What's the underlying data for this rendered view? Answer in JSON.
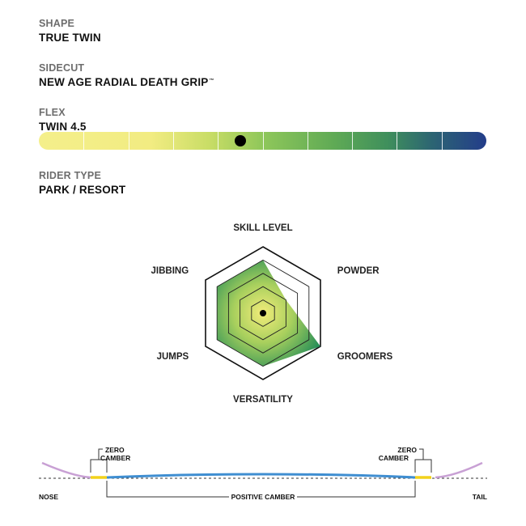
{
  "specs": {
    "shape": {
      "label": "SHAPE",
      "value": "TRUE TWIN"
    },
    "sidecut": {
      "label": "SIDECUT",
      "value": "NEW AGE RADIAL DEATH GRIP",
      "trademark": "™"
    },
    "flex": {
      "label": "FLEX",
      "value": "TWIN 4.5",
      "rating": 4.5,
      "scale_max": 10
    },
    "rider_type": {
      "label": "RIDER TYPE",
      "value": "PARK / RESORT"
    }
  },
  "chart_data": {
    "type": "radar",
    "axes": [
      "SKILL LEVEL",
      "POWDER",
      "GROOMERS",
      "VERSATILITY",
      "JUMPS",
      "JIBBING"
    ],
    "levels": 5,
    "values": [
      4,
      2,
      5,
      4,
      4,
      4
    ]
  },
  "camber": {
    "nose_label": "NOSE",
    "tail_label": "TAIL",
    "left_zero_label": [
      "ZERO",
      "CAMBER"
    ],
    "right_zero_label": [
      "ZERO",
      "CAMBER"
    ],
    "positive_label": "POSITIVE CAMBER",
    "colors": {
      "tip": "#c8a0d4",
      "base": "#3f8ed1",
      "zero": "#f2d21b"
    }
  },
  "colors": {
    "radar_center": "#f2ec7a",
    "radar_edge": "#1f8a57",
    "outline": "#111111"
  }
}
